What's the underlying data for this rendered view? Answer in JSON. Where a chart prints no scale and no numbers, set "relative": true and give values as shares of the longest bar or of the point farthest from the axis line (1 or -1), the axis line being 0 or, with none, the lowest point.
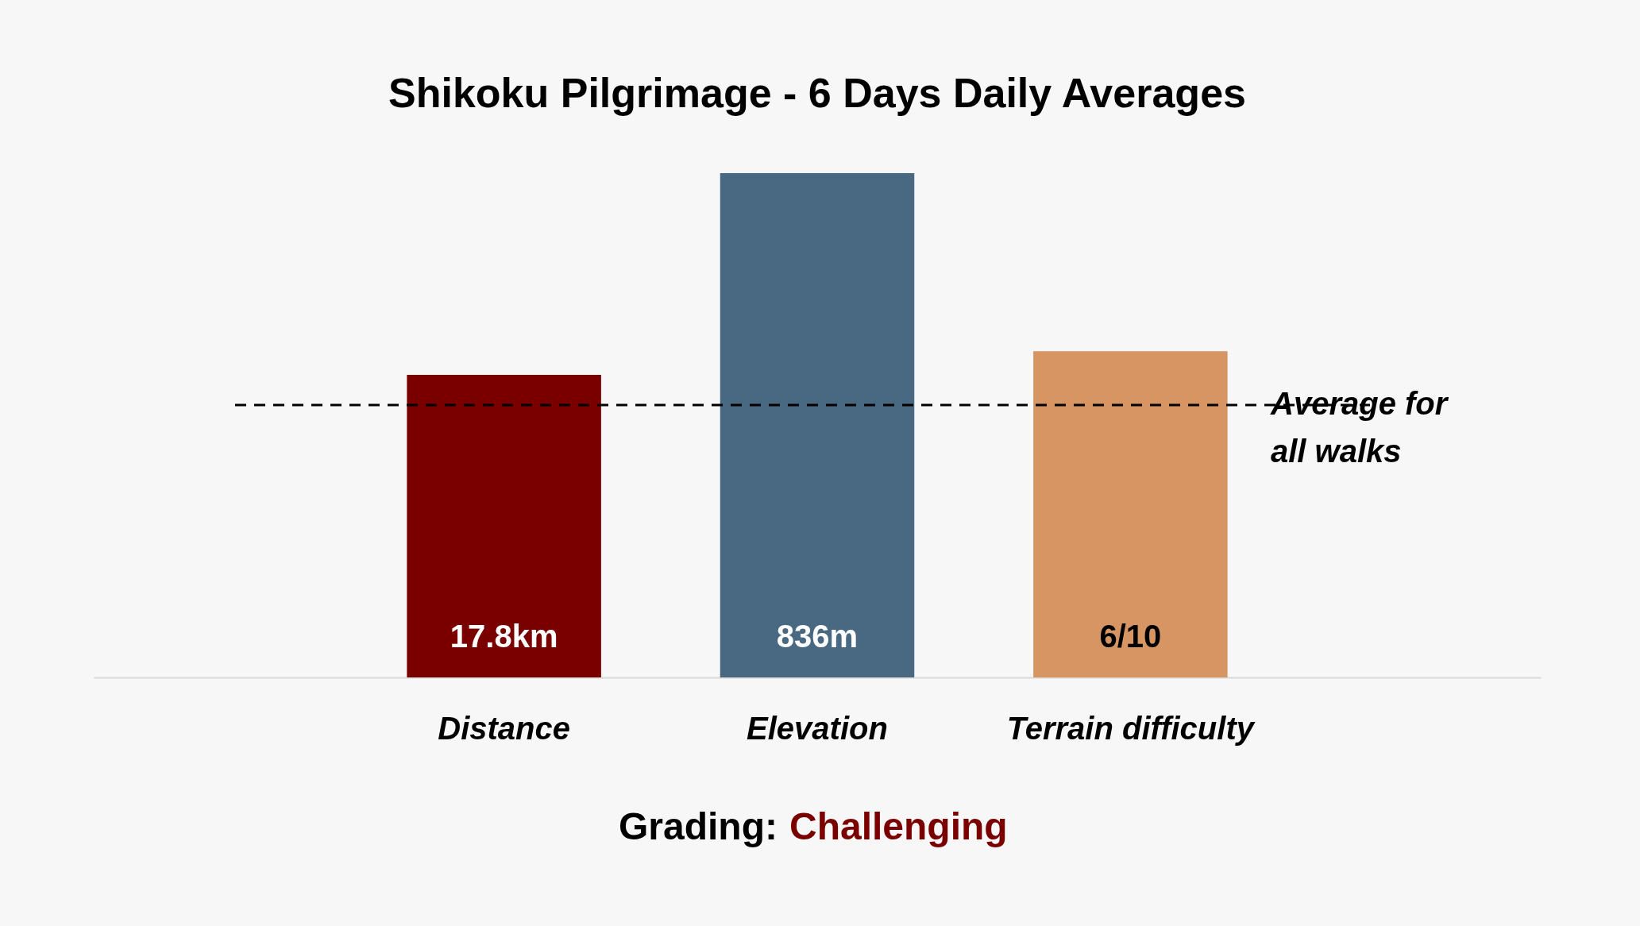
{
  "chart_data": {
    "type": "bar",
    "title": "Shikoku Pilgrimage - 6 Days Daily Averages",
    "categories": [
      "Distance",
      "Elevation",
      "Terrain difficulty"
    ],
    "values": [
      0.6,
      1.0,
      0.647
    ],
    "colors": [
      "#7a0000",
      "#496882",
      "#d69563"
    ],
    "relative": true,
    "ref_lines": [
      {
        "axis": "y",
        "value": 0.54,
        "label": "Average for all walks",
        "color": "#000000",
        "line_style": "dashed"
      }
    ],
    "annotations": [
      "Grading:",
      "Challenging",
      "17.8km",
      "836m",
      "6/10"
    ]
  }
}
